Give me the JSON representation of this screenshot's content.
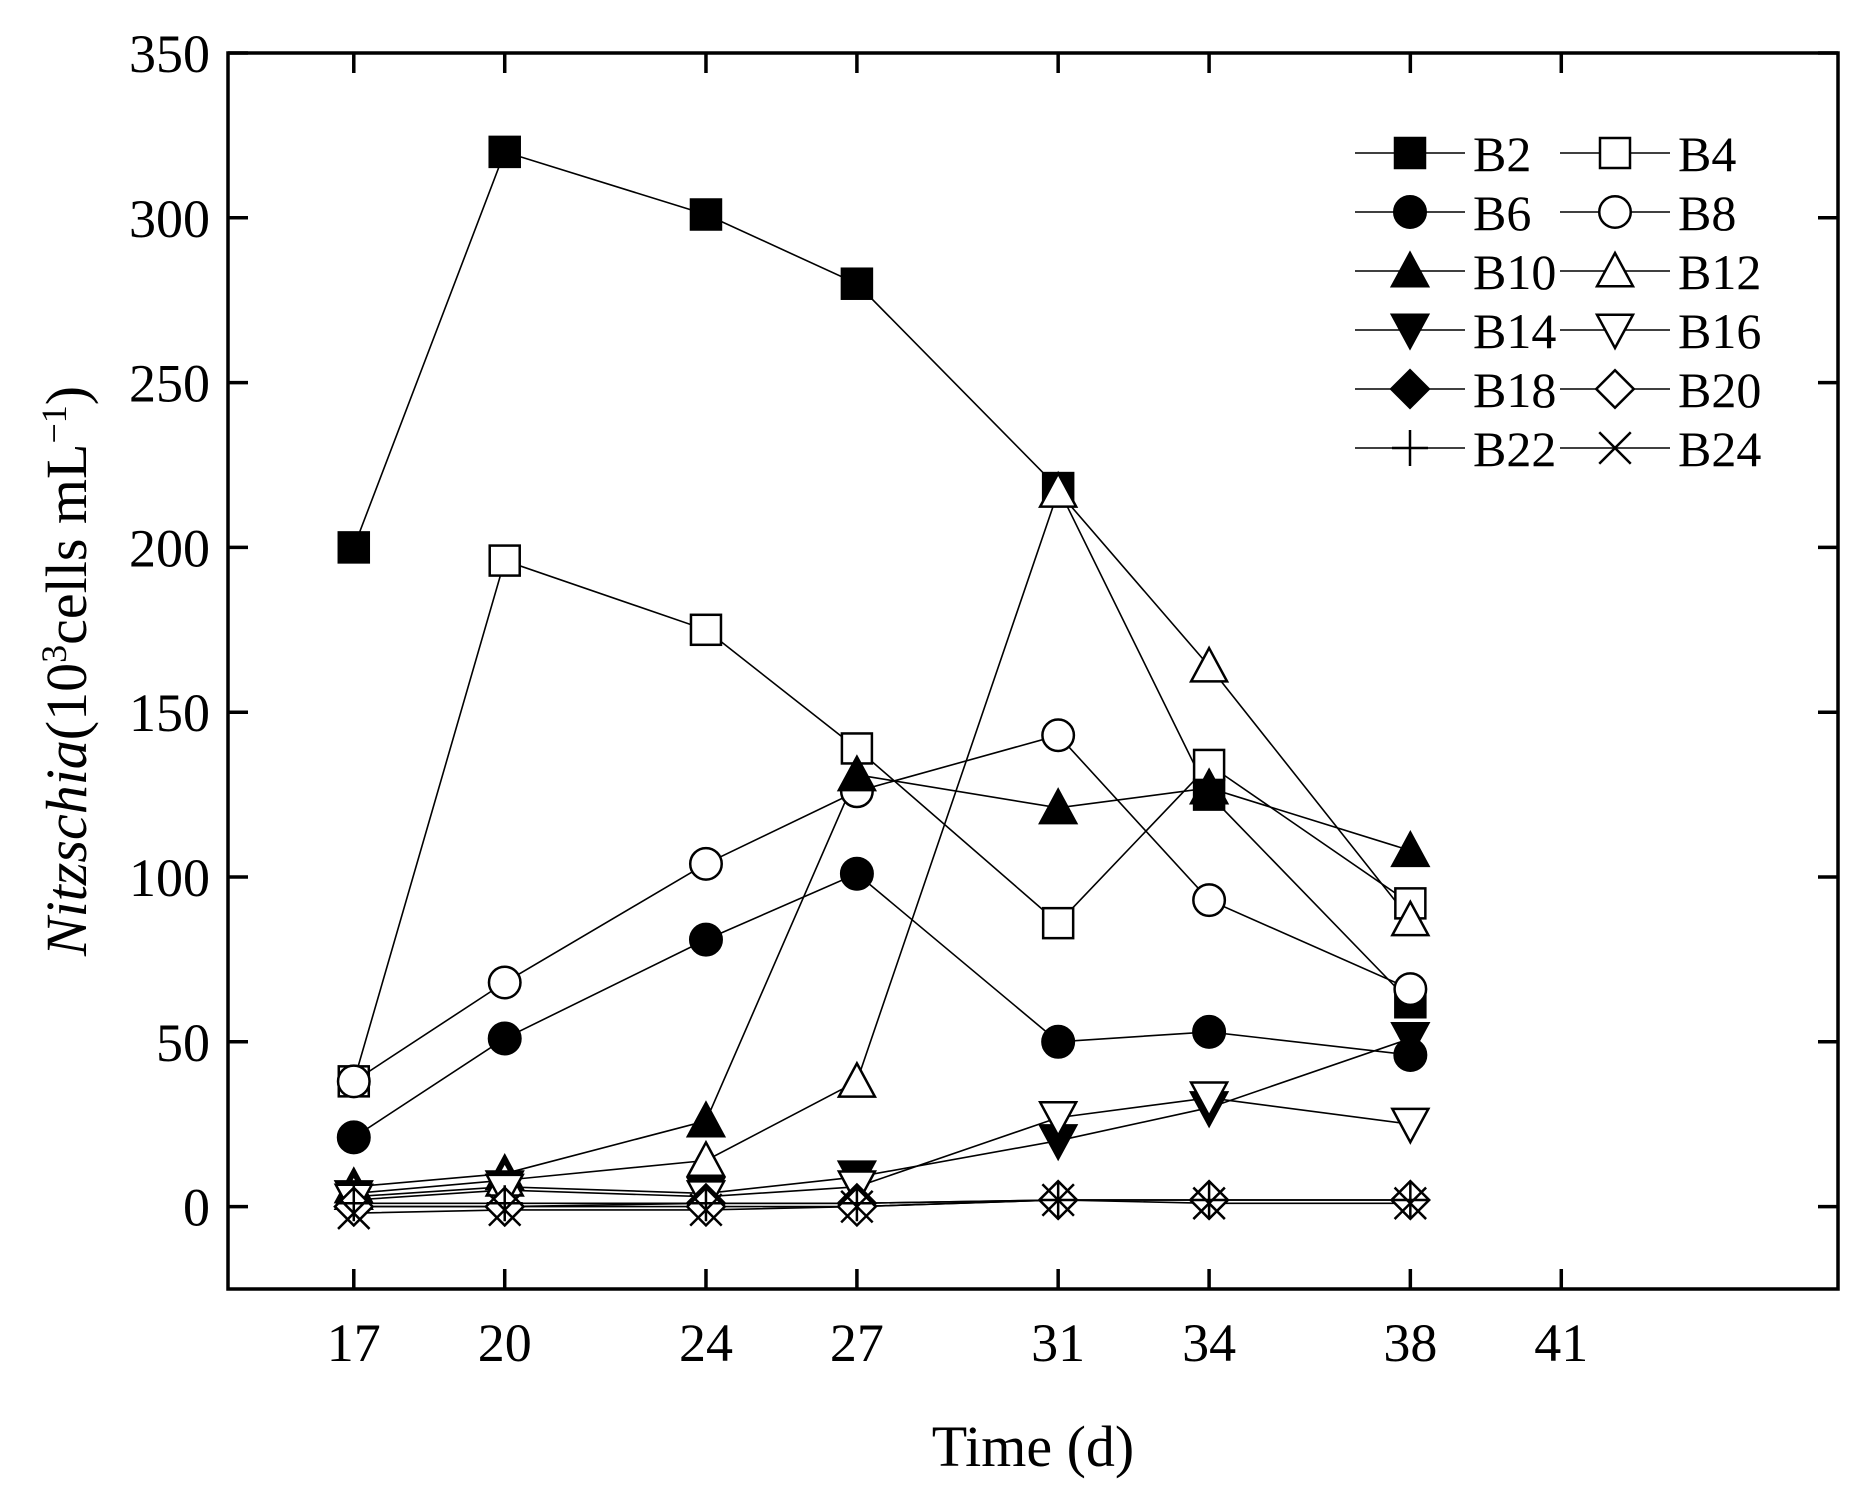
{
  "chart_data": {
    "type": "line",
    "xlabel": "Time (d)",
    "ylabel": {
      "prefix_italic": "Nitzschia",
      "open": "(10",
      "sup1": "3",
      "middle": "cells mL",
      "sup2": "−1",
      "close": ")"
    },
    "xlim": [
      14.5,
      46.5
    ],
    "ylim": [
      -25,
      350
    ],
    "xticks": [
      17,
      20,
      24,
      27,
      31,
      34,
      38,
      41
    ],
    "yticks": [
      0,
      50,
      100,
      150,
      200,
      250,
      300,
      350
    ],
    "x": [
      17,
      20,
      24,
      27,
      31,
      34,
      38
    ],
    "series": [
      {
        "name": "B2",
        "marker": "square",
        "filled": true,
        "values": [
          200,
          320,
          301,
          280,
          218,
          125,
          62
        ]
      },
      {
        "name": "B4",
        "marker": "square",
        "filled": false,
        "values": [
          38,
          196,
          175,
          139,
          86,
          134,
          92
        ]
      },
      {
        "name": "B6",
        "marker": "circle",
        "filled": true,
        "values": [
          21,
          51,
          81,
          101,
          50,
          53,
          46
        ]
      },
      {
        "name": "B8",
        "marker": "circle",
        "filled": false,
        "values": [
          38,
          68,
          104,
          126,
          143,
          93,
          66
        ]
      },
      {
        "name": "B10",
        "marker": "triangle-up",
        "filled": true,
        "values": [
          6,
          10,
          26,
          131,
          121,
          127,
          108
        ]
      },
      {
        "name": "B12",
        "marker": "triangle-up",
        "filled": false,
        "values": [
          4,
          8,
          14,
          38,
          217,
          164,
          87
        ]
      },
      {
        "name": "B14",
        "marker": "triangle-down",
        "filled": true,
        "values": [
          3,
          6,
          4,
          9,
          20,
          30,
          51
        ]
      },
      {
        "name": "B16",
        "marker": "triangle-down",
        "filled": false,
        "values": [
          2,
          5,
          3,
          6,
          27,
          33,
          25
        ]
      },
      {
        "name": "B18",
        "marker": "diamond",
        "filled": true,
        "values": [
          0,
          0,
          1,
          1,
          2,
          2,
          2
        ]
      },
      {
        "name": "B20",
        "marker": "diamond",
        "filled": false,
        "values": [
          0,
          0,
          0,
          0,
          2,
          2,
          2
        ]
      },
      {
        "name": "B22",
        "marker": "plus",
        "filled": false,
        "values": [
          1,
          1,
          1,
          1,
          2,
          2,
          2
        ]
      },
      {
        "name": "B24",
        "marker": "x",
        "filled": false,
        "values": [
          -2,
          -1,
          -1,
          0,
          2,
          1,
          1
        ]
      }
    ],
    "legend": {
      "position": "top-right",
      "columns": 2
    }
  }
}
